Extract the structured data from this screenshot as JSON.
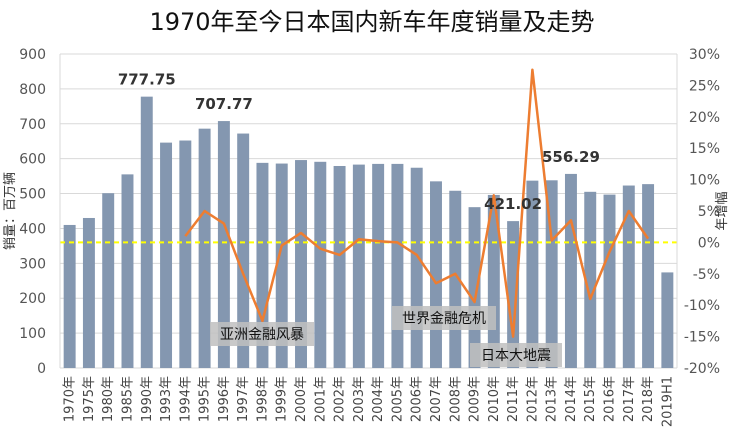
{
  "chart_data": {
    "type": "bar",
    "title": "1970年至今日本国内新车年度销量及走势",
    "ylabel": "销量：百万辆",
    "y2label": "年增幅",
    "ylim": [
      0,
      900
    ],
    "y2lim": [
      -20,
      30
    ],
    "y_ticks": [
      "0",
      "100",
      "200",
      "300",
      "400",
      "500",
      "600",
      "700",
      "800",
      "900"
    ],
    "y2_ticks": [
      "-20%",
      "-15%",
      "-10%",
      "-5%",
      "0%",
      "5%",
      "10%",
      "15%",
      "20%",
      "25%",
      "30%"
    ],
    "categories": [
      "1970年",
      "1975年",
      "1980年",
      "1985年",
      "1990年",
      "1993年",
      "1994年",
      "1995年",
      "1996年",
      "1997年",
      "1998年",
      "1999年",
      "2000年",
      "2001年",
      "2002年",
      "2003年",
      "2004年",
      "2005年",
      "2006年",
      "2007年",
      "2008年",
      "2009年",
      "2010年",
      "2011年",
      "2012年",
      "2013年",
      "2014年",
      "2015年",
      "2016年",
      "2017年",
      "2018年",
      "2019H1"
    ],
    "series": [
      {
        "kind": "bar",
        "color": "#8497B0",
        "values": [
          410,
          430,
          501,
          555,
          777.75,
          646,
          652,
          686,
          707.77,
          672,
          588,
          586,
          596,
          591,
          579,
          583,
          585,
          585,
          574,
          535,
          508,
          461,
          496,
          421.02,
          537,
          538,
          556.29,
          505,
          497,
          523,
          527,
          274
        ]
      },
      {
        "kind": "line",
        "axis": "secondary",
        "color": "#ED7D31",
        "values": [
          null,
          null,
          null,
          null,
          null,
          null,
          1,
          5,
          3,
          -5,
          -12.5,
          -0.5,
          1.5,
          -1,
          -2,
          0.5,
          0.2,
          0,
          -2,
          -6.5,
          -5,
          -9.5,
          7.5,
          -15,
          27.5,
          0.3,
          3.5,
          -9,
          -1.5,
          5,
          0.6,
          null
        ]
      }
    ],
    "data_labels": [
      {
        "index": 4,
        "text": "777.75"
      },
      {
        "index": 8,
        "text": "707.77"
      },
      {
        "index": 23,
        "text": "421.02"
      },
      {
        "index": 26,
        "text": "556.29"
      }
    ],
    "annotations": [
      {
        "text": "亚洲金融风暴"
      },
      {
        "text": "世界金融危机"
      },
      {
        "text": "日本大地震"
      }
    ],
    "zero_line_color": "#FFFF00",
    "grid": true
  }
}
